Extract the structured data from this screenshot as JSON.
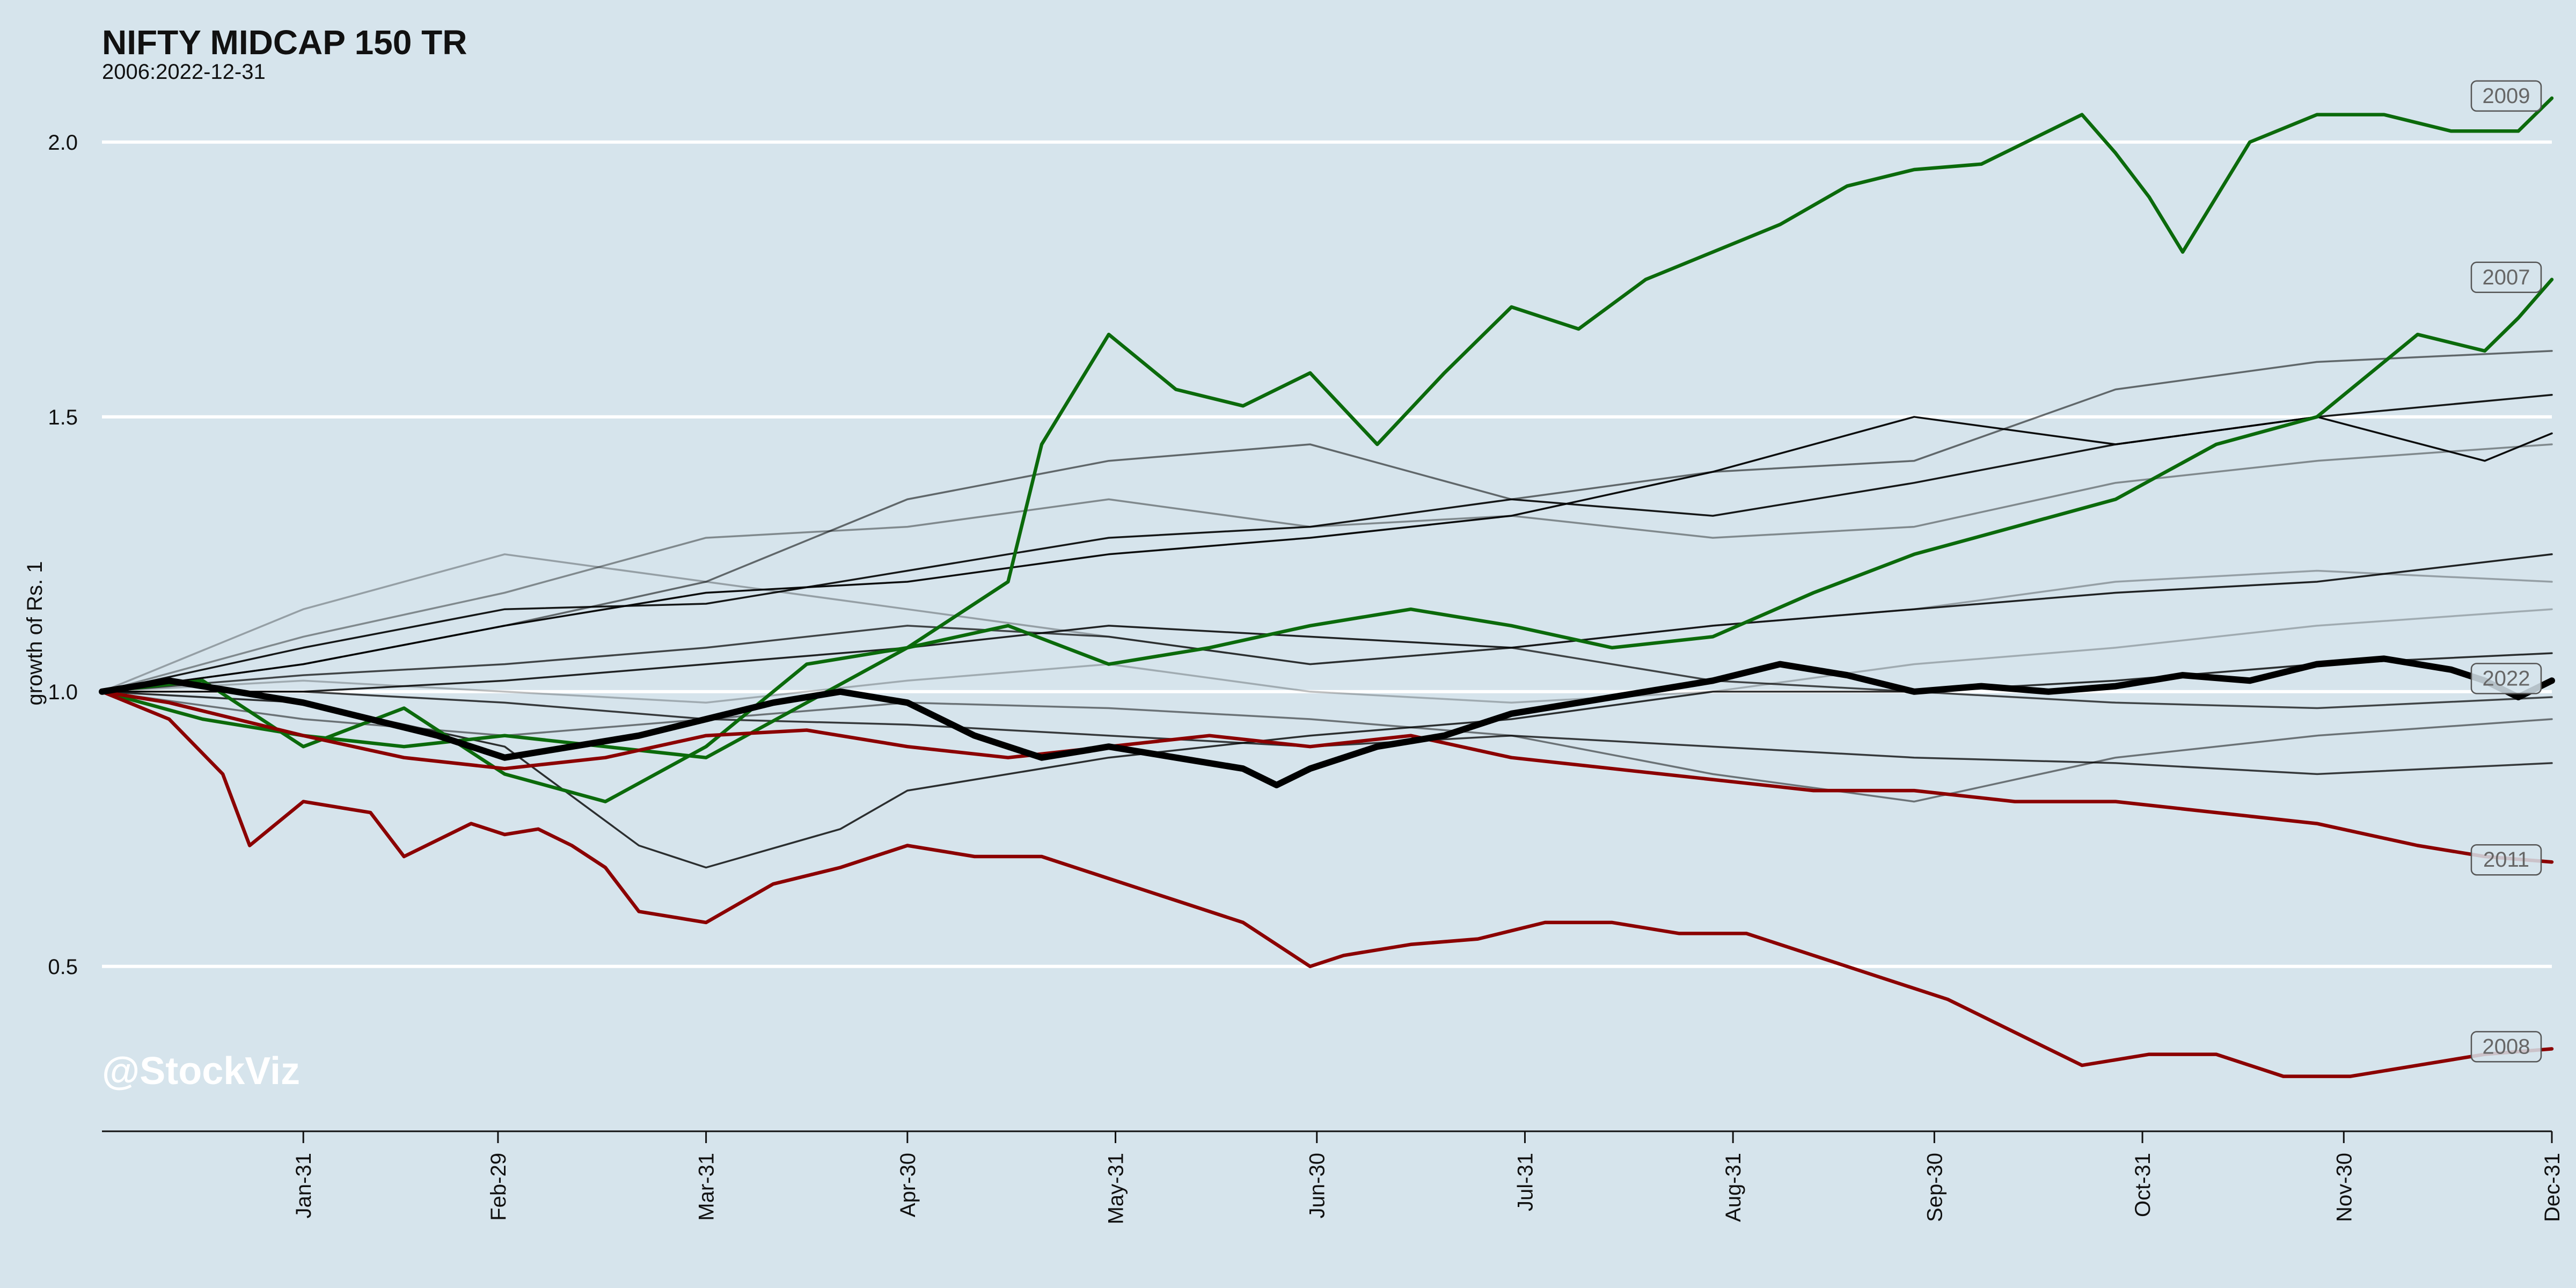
{
  "chart_data": {
    "type": "line",
    "title": "NIFTY MIDCAP 150 TR",
    "subtitle": "2006:2022-12-31",
    "ylabel": "growth of Rs. 1",
    "xlabel": "",
    "watermark": "@StockViz",
    "ylim": [
      0.2,
      2.2
    ],
    "yticks": [
      {
        "value": 0.5,
        "label": "0.5"
      },
      {
        "value": 1.0,
        "label": "1.0"
      },
      {
        "value": 1.5,
        "label": "1.5"
      },
      {
        "value": 2.0,
        "label": "2.0"
      }
    ],
    "xlim": [
      0,
      365
    ],
    "xticks": [
      {
        "value": 30,
        "label": "Jan-31"
      },
      {
        "value": 59,
        "label": "Feb-29"
      },
      {
        "value": 90,
        "label": "Mar-31"
      },
      {
        "value": 120,
        "label": "Apr-30"
      },
      {
        "value": 151,
        "label": "May-31"
      },
      {
        "value": 181,
        "label": "Jun-30"
      },
      {
        "value": 212,
        "label": "Jul-31"
      },
      {
        "value": 243,
        "label": "Aug-31"
      },
      {
        "value": 273,
        "label": "Sep-30"
      },
      {
        "value": 304,
        "label": "Oct-31"
      },
      {
        "value": 334,
        "label": "Nov-30"
      },
      {
        "value": 365,
        "label": "Dec-31"
      }
    ],
    "grid": "horizontal",
    "colors": {
      "up": "#0b6a0b",
      "down": "#8b0000",
      "current": "#000000",
      "other": "#000000",
      "background": "#d6e4ec",
      "grid": "#ffffff"
    },
    "series": [
      {
        "name": "2009",
        "style": "up",
        "x": [
          0,
          15,
          30,
          45,
          60,
          75,
          90,
          105,
          120,
          135,
          140,
          150,
          160,
          170,
          180,
          190,
          200,
          210,
          220,
          230,
          240,
          250,
          260,
          270,
          280,
          290,
          295,
          300,
          305,
          310,
          320,
          330,
          340,
          350,
          360,
          365
        ],
        "y": [
          1.0,
          0.95,
          0.92,
          0.9,
          0.92,
          0.9,
          0.88,
          0.98,
          1.08,
          1.2,
          1.45,
          1.65,
          1.55,
          1.52,
          1.58,
          1.45,
          1.58,
          1.7,
          1.66,
          1.75,
          1.8,
          1.85,
          1.92,
          1.95,
          1.96,
          2.02,
          2.05,
          1.98,
          1.9,
          1.8,
          2.0,
          2.05,
          2.05,
          2.02,
          2.02,
          2.08
        ]
      },
      {
        "name": "2007",
        "style": "up",
        "x": [
          0,
          15,
          30,
          45,
          60,
          75,
          90,
          105,
          120,
          135,
          150,
          165,
          180,
          195,
          210,
          225,
          240,
          255,
          270,
          285,
          300,
          315,
          330,
          345,
          355,
          360,
          365
        ],
        "y": [
          1.0,
          1.02,
          0.9,
          0.97,
          0.85,
          0.8,
          0.9,
          1.05,
          1.08,
          1.12,
          1.05,
          1.08,
          1.12,
          1.15,
          1.12,
          1.08,
          1.1,
          1.18,
          1.25,
          1.3,
          1.35,
          1.45,
          1.5,
          1.65,
          1.62,
          1.68,
          1.75
        ]
      },
      {
        "name": "2011",
        "style": "down",
        "x": [
          0,
          10,
          20,
          30,
          45,
          60,
          75,
          90,
          105,
          120,
          135,
          150,
          165,
          180,
          195,
          210,
          225,
          240,
          255,
          270,
          285,
          300,
          315,
          330,
          345,
          355,
          365
        ],
        "y": [
          1.0,
          0.98,
          0.95,
          0.92,
          0.88,
          0.86,
          0.88,
          0.92,
          0.93,
          0.9,
          0.88,
          0.9,
          0.92,
          0.9,
          0.92,
          0.88,
          0.86,
          0.84,
          0.82,
          0.82,
          0.8,
          0.8,
          0.78,
          0.76,
          0.72,
          0.7,
          0.69
        ]
      },
      {
        "name": "2008",
        "style": "down",
        "x": [
          0,
          10,
          18,
          22,
          30,
          40,
          45,
          55,
          60,
          65,
          70,
          75,
          80,
          90,
          100,
          110,
          120,
          130,
          140,
          150,
          160,
          170,
          180,
          185,
          195,
          205,
          215,
          225,
          235,
          245,
          255,
          265,
          275,
          285,
          295,
          305,
          315,
          325,
          335,
          345,
          355,
          365
        ],
        "y": [
          1.0,
          0.95,
          0.85,
          0.72,
          0.8,
          0.78,
          0.7,
          0.76,
          0.74,
          0.75,
          0.72,
          0.68,
          0.6,
          0.58,
          0.65,
          0.68,
          0.72,
          0.7,
          0.7,
          0.66,
          0.62,
          0.58,
          0.5,
          0.52,
          0.54,
          0.55,
          0.58,
          0.58,
          0.56,
          0.56,
          0.52,
          0.48,
          0.44,
          0.38,
          0.32,
          0.34,
          0.34,
          0.3,
          0.3,
          0.32,
          0.34,
          0.35
        ]
      },
      {
        "name": "2022",
        "style": "current",
        "x": [
          0,
          10,
          20,
          30,
          40,
          50,
          60,
          70,
          80,
          90,
          100,
          110,
          120,
          130,
          140,
          150,
          160,
          170,
          175,
          180,
          190,
          200,
          210,
          220,
          230,
          240,
          250,
          260,
          270,
          280,
          290,
          300,
          310,
          320,
          330,
          340,
          350,
          355,
          360,
          365
        ],
        "y": [
          1.0,
          1.02,
          1.0,
          0.98,
          0.95,
          0.92,
          0.88,
          0.9,
          0.92,
          0.95,
          0.98,
          1.0,
          0.98,
          0.92,
          0.88,
          0.9,
          0.88,
          0.86,
          0.83,
          0.86,
          0.9,
          0.92,
          0.96,
          0.98,
          1.0,
          1.02,
          1.05,
          1.03,
          1.0,
          1.01,
          1.0,
          1.01,
          1.03,
          1.02,
          1.05,
          1.06,
          1.04,
          1.02,
          0.99,
          1.02
        ]
      },
      {
        "style": "other",
        "opacity": 0.95,
        "x": [
          0,
          30,
          60,
          90,
          120,
          150,
          180,
          210,
          240,
          270,
          300,
          330,
          355,
          365
        ],
        "y": [
          1.0,
          1.05,
          1.12,
          1.18,
          1.2,
          1.25,
          1.28,
          1.32,
          1.4,
          1.5,
          1.45,
          1.5,
          1.42,
          1.47
        ]
      },
      {
        "style": "other",
        "opacity": 0.9,
        "x": [
          0,
          30,
          60,
          90,
          120,
          150,
          180,
          210,
          240,
          270,
          300,
          330,
          365
        ],
        "y": [
          1.0,
          1.08,
          1.15,
          1.16,
          1.22,
          1.28,
          1.3,
          1.35,
          1.32,
          1.38,
          1.45,
          1.5,
          1.54
        ]
      },
      {
        "style": "other",
        "opacity": 0.85,
        "x": [
          0,
          30,
          60,
          90,
          120,
          150,
          180,
          210,
          240,
          270,
          300,
          330,
          365
        ],
        "y": [
          1.0,
          1.0,
          1.02,
          1.05,
          1.08,
          1.12,
          1.1,
          1.08,
          1.12,
          1.15,
          1.18,
          1.2,
          1.25
        ]
      },
      {
        "style": "other",
        "opacity": 0.8,
        "x": [
          0,
          30,
          60,
          80,
          90,
          110,
          120,
          150,
          180,
          210,
          240,
          270,
          300,
          330,
          365
        ],
        "y": [
          1.0,
          0.98,
          0.9,
          0.72,
          0.68,
          0.75,
          0.82,
          0.88,
          0.92,
          0.95,
          1.0,
          1.0,
          1.02,
          1.05,
          1.07
        ]
      },
      {
        "style": "other",
        "opacity": 0.75,
        "x": [
          0,
          30,
          60,
          90,
          120,
          150,
          180,
          210,
          240,
          270,
          300,
          330,
          365
        ],
        "y": [
          1.0,
          1.0,
          0.98,
          0.95,
          0.94,
          0.92,
          0.9,
          0.92,
          0.9,
          0.88,
          0.87,
          0.85,
          0.87
        ]
      },
      {
        "style": "other",
        "opacity": 0.7,
        "x": [
          0,
          30,
          60,
          90,
          120,
          150,
          180,
          210,
          240,
          270,
          300,
          330,
          365
        ],
        "y": [
          1.0,
          1.03,
          1.05,
          1.08,
          1.12,
          1.1,
          1.05,
          1.08,
          1.02,
          1.0,
          0.98,
          0.97,
          0.99
        ]
      },
      {
        "style": "other",
        "opacity": 0.55,
        "x": [
          0,
          30,
          60,
          90,
          120,
          150,
          180,
          210,
          240,
          270,
          300,
          330,
          365
        ],
        "y": [
          1.0,
          1.05,
          1.12,
          1.2,
          1.35,
          1.42,
          1.45,
          1.35,
          1.4,
          1.42,
          1.55,
          1.6,
          1.62
        ]
      },
      {
        "style": "other",
        "opacity": 0.5,
        "x": [
          0,
          30,
          60,
          90,
          120,
          150,
          180,
          210,
          240,
          270,
          300,
          330,
          365
        ],
        "y": [
          1.0,
          0.95,
          0.92,
          0.95,
          0.98,
          0.97,
          0.95,
          0.92,
          0.85,
          0.8,
          0.88,
          0.92,
          0.95
        ]
      },
      {
        "style": "other",
        "opacity": 0.4,
        "x": [
          0,
          30,
          60,
          90,
          120,
          150,
          180,
          210,
          240,
          270,
          300,
          330,
          365
        ],
        "y": [
          1.0,
          1.1,
          1.18,
          1.28,
          1.3,
          1.35,
          1.3,
          1.32,
          1.28,
          1.3,
          1.38,
          1.42,
          1.45
        ]
      },
      {
        "style": "other",
        "opacity": 0.3,
        "x": [
          0,
          30,
          60,
          90,
          120,
          150,
          180,
          210,
          240,
          270,
          300,
          330,
          365
        ],
        "y": [
          1.0,
          1.15,
          1.25,
          1.2,
          1.15,
          1.1,
          1.05,
          1.08,
          1.12,
          1.15,
          1.2,
          1.22,
          1.2
        ]
      },
      {
        "style": "other",
        "opacity": 0.25,
        "x": [
          0,
          30,
          60,
          90,
          120,
          150,
          180,
          210,
          240,
          270,
          300,
          330,
          365
        ],
        "y": [
          1.0,
          1.02,
          1.0,
          0.98,
          1.02,
          1.05,
          1.0,
          0.98,
          1.0,
          1.05,
          1.08,
          1.12,
          1.15
        ]
      }
    ]
  }
}
